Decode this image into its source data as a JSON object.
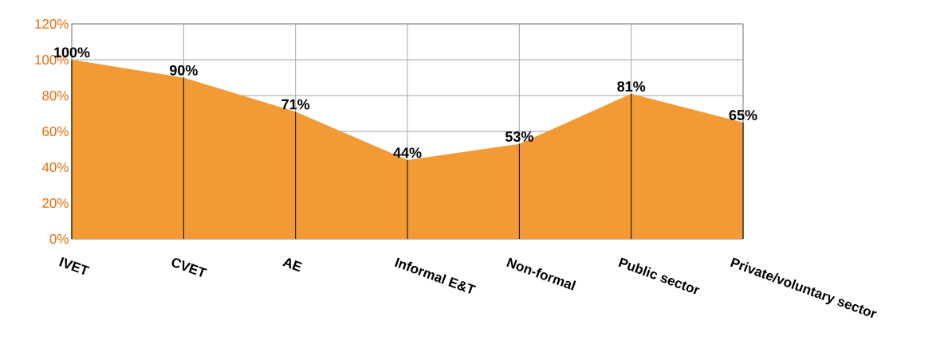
{
  "chart_data": {
    "type": "area",
    "categories": [
      "IVET",
      "CVET",
      "AE",
      "Informal E&T",
      "Non-formal",
      "Public sector",
      "Private/voluntary sector"
    ],
    "values": [
      100,
      90,
      71,
      44,
      53,
      81,
      65
    ],
    "value_labels": [
      "100%",
      "90%",
      "71%",
      "44%",
      "53%",
      "81%",
      "65%"
    ],
    "color": "#f39a35",
    "ylim": [
      0,
      120
    ],
    "yticks": [
      {
        "value": 0,
        "label": "0%"
      },
      {
        "value": 20,
        "label": "20%"
      },
      {
        "value": 40,
        "label": "40%"
      },
      {
        "value": 60,
        "label": "60%"
      },
      {
        "value": 80,
        "label": "80%"
      },
      {
        "value": 100,
        "label": "100%"
      },
      {
        "value": 120,
        "label": "120%"
      }
    ],
    "grid": true
  }
}
